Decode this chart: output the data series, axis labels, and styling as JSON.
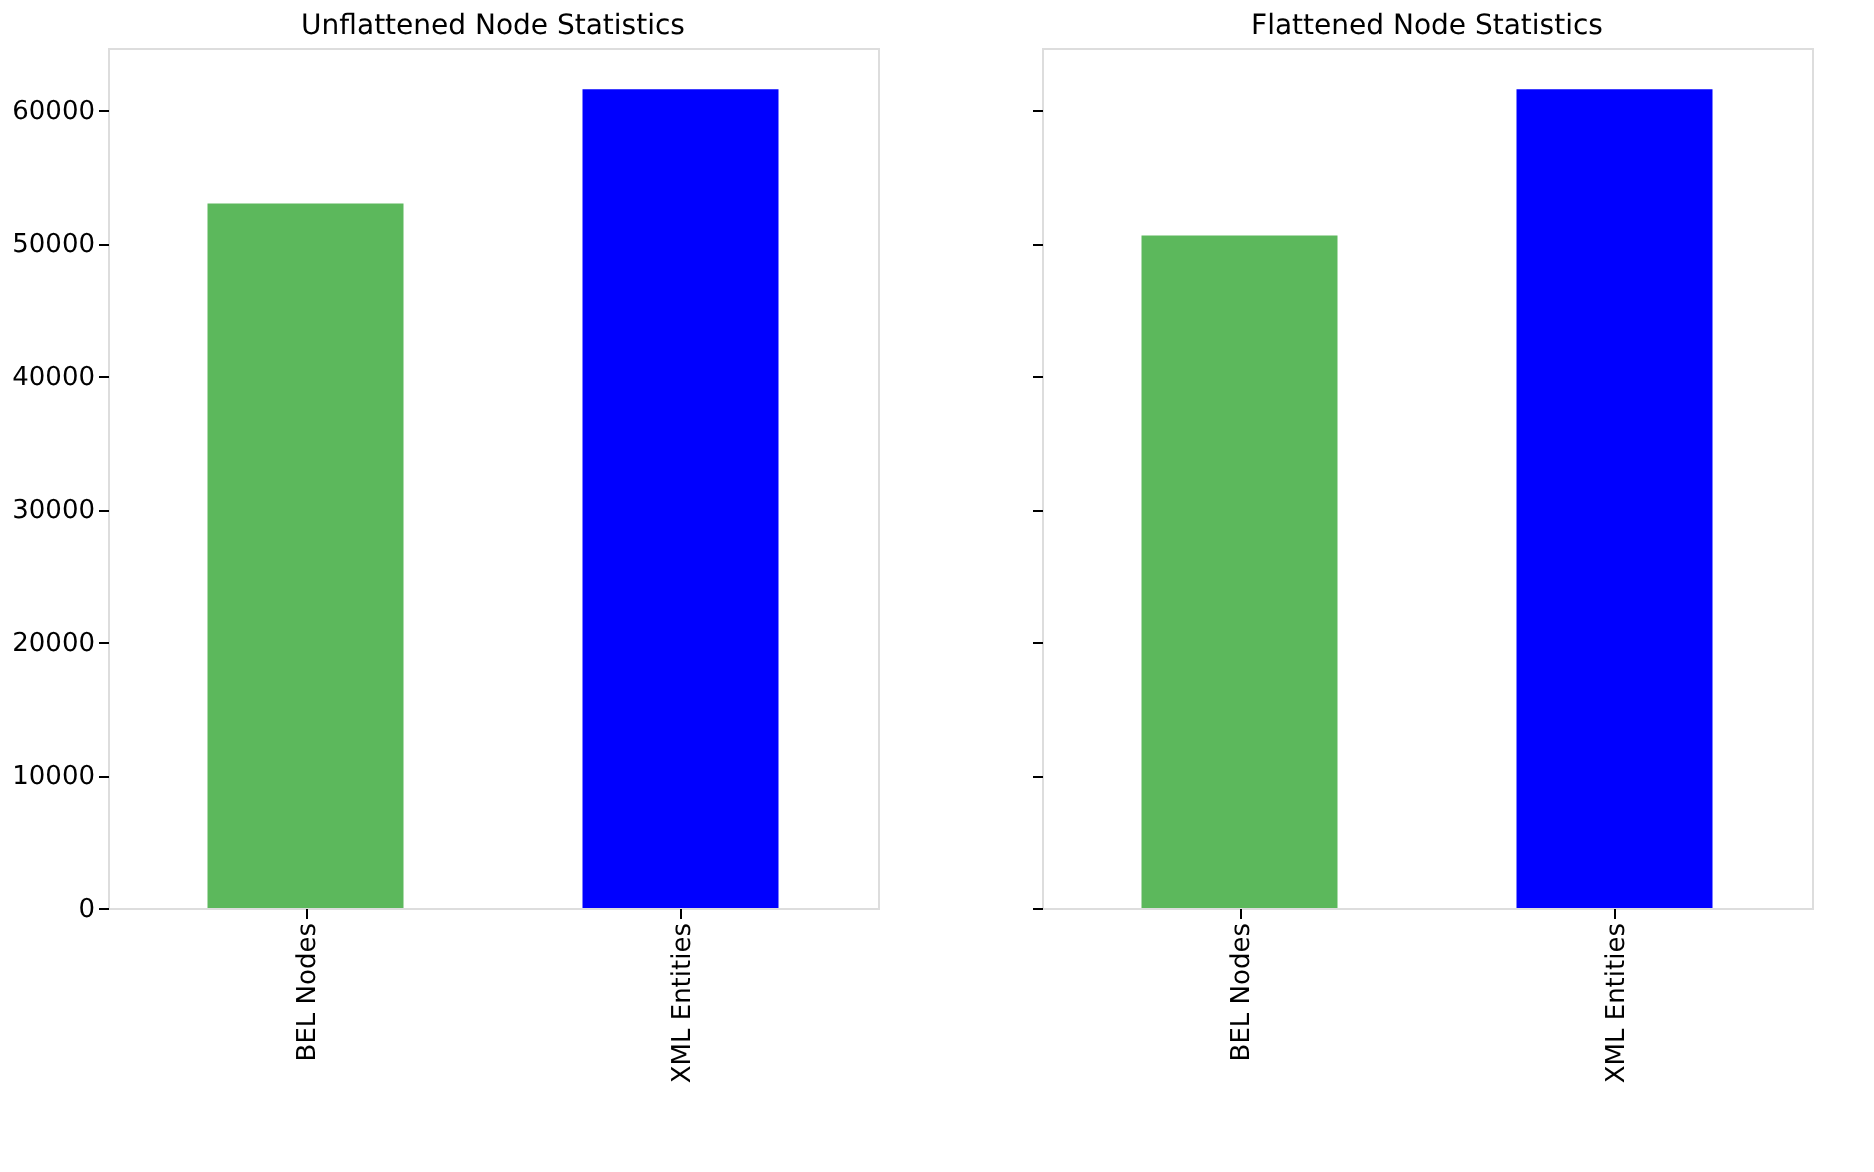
{
  "chart_data": [
    {
      "type": "bar",
      "title": "Unflattened Node Statistics",
      "categories": [
        "BEL Nodes",
        "XML Entities"
      ],
      "values": [
        53000,
        61600
      ],
      "colors": [
        "#5cb85c",
        "#0000ff"
      ],
      "ylim": [
        0,
        64700
      ],
      "yticks": [
        0,
        10000,
        20000,
        30000,
        40000,
        50000,
        60000
      ],
      "grid": false
    },
    {
      "type": "bar",
      "title": "Flattened Node Statistics",
      "categories": [
        "BEL Nodes",
        "XML Entities"
      ],
      "values": [
        50600,
        61600
      ],
      "colors": [
        "#5cb85c",
        "#0000ff"
      ],
      "ylim": [
        0,
        64700
      ],
      "yticks": [
        0,
        10000,
        20000,
        30000,
        40000,
        50000,
        60000
      ],
      "grid": false,
      "tick_labels": "x"
    }
  ]
}
